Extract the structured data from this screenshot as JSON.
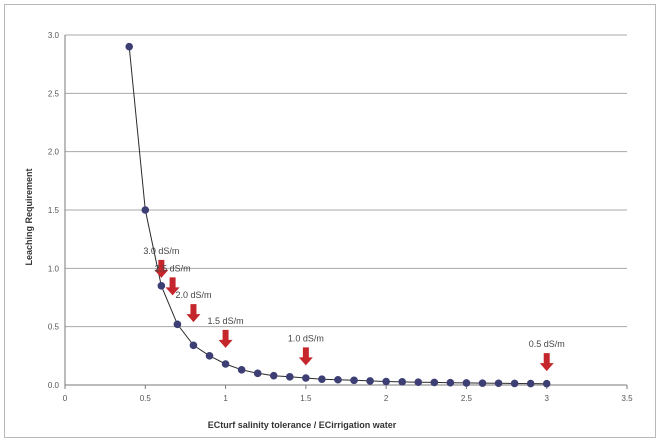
{
  "chart_data": {
    "type": "scatter",
    "title": "",
    "xlabel": "ECturf salinity tolerance / ECirrigation water",
    "ylabel": "Leaching Requirement",
    "xlim": [
      0,
      3.5
    ],
    "ylim": [
      0,
      3.0
    ],
    "x_ticks": [
      "0",
      "0.5",
      "1",
      "1.5",
      "2",
      "2.5",
      "3",
      "3.5"
    ],
    "y_ticks": [
      "0.0",
      "0.5",
      "1.0",
      "1.5",
      "2.0",
      "2.5",
      "3.0"
    ],
    "grid": "horizontal",
    "legend": "none",
    "series": [
      {
        "x": [
          0.4,
          0.5,
          0.6,
          0.7,
          0.8,
          0.9,
          1.0,
          1.1,
          1.2,
          1.3,
          1.4,
          1.5,
          1.6,
          1.7,
          1.8,
          1.9,
          2.0,
          2.1,
          2.2,
          2.3,
          2.4,
          2.5,
          2.6,
          2.7,
          2.8,
          2.9,
          3.0
        ],
        "y": [
          2.9,
          1.5,
          0.85,
          0.52,
          0.34,
          0.25,
          0.18,
          0.13,
          0.1,
          0.08,
          0.07,
          0.06,
          0.05,
          0.045,
          0.04,
          0.035,
          0.03,
          0.027,
          0.024,
          0.022,
          0.02,
          0.018,
          0.016,
          0.015,
          0.013,
          0.012,
          0.011
        ]
      }
    ],
    "annotations": [
      {
        "text": "3.0 dS/m",
        "x": 0.6,
        "y": 0.85
      },
      {
        "text": "2.5 dS/m",
        "x": 0.67,
        "y": 0.7
      },
      {
        "text": "2.0 dS/m",
        "x": 0.8,
        "y": 0.47
      },
      {
        "text": "1.5 dS/m",
        "x": 1.0,
        "y": 0.25
      },
      {
        "text": "1.0 dS/m",
        "x": 1.5,
        "y": 0.1
      },
      {
        "text": "0.5 dS/m",
        "x": 3.0,
        "y": 0.05
      }
    ],
    "colors": {
      "marker": "#3d3f74",
      "line": "#2b2b2b",
      "arrow": "#c4262c",
      "grid": "#a8a8a8"
    }
  }
}
